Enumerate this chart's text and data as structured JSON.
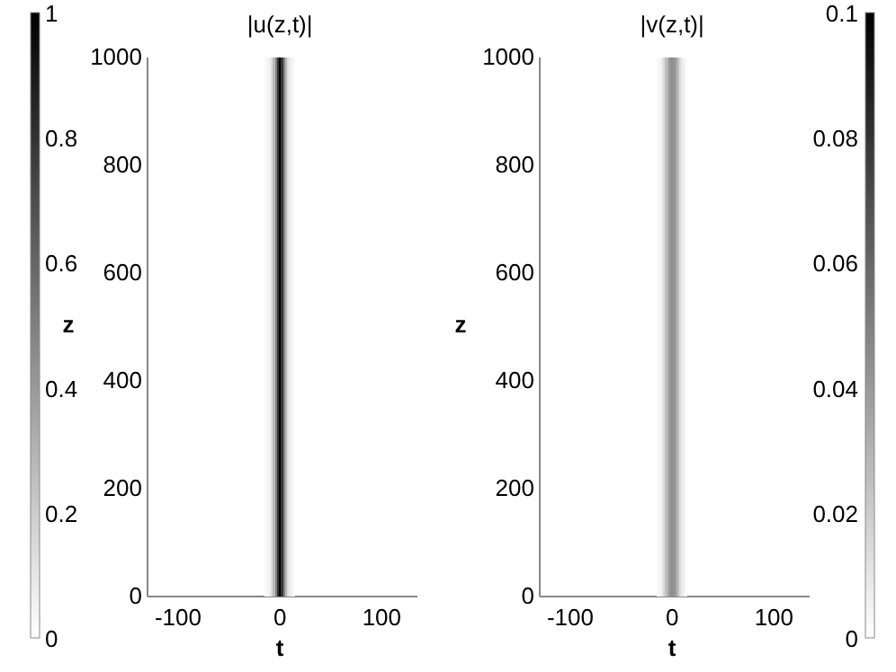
{
  "chart_data": [
    {
      "type": "heatmap",
      "title": "|u(z,t)|",
      "xlabel": "t",
      "ylabel": "z",
      "x": [
        -14,
        -12,
        -10,
        -8,
        -6,
        -4,
        -2,
        0,
        2,
        4,
        6,
        8,
        10,
        12,
        14
      ],
      "cells": [
        [
          0.02,
          0.04,
          0.07,
          0.14,
          0.27,
          0.49,
          0.79,
          1,
          0.79,
          0.49,
          0.27,
          0.14,
          0.07,
          0.04,
          0.02
        ]
      ],
      "clim": [
        0,
        1
      ],
      "cticks": [
        0,
        0.2,
        0.4,
        0.6,
        0.8,
        1
      ],
      "xlim": [
        -130,
        135
      ],
      "xticks": [
        -100,
        0,
        100
      ],
      "ylim": [
        0,
        1000
      ],
      "yticks": [
        0,
        200,
        400,
        600,
        800,
        1000
      ]
    },
    {
      "type": "heatmap",
      "title": "|v(z,t)|",
      "xlabel": "t",
      "ylabel": "z",
      "x": [
        -14,
        -12,
        -10,
        -8,
        -6,
        -4,
        -2,
        0,
        2,
        4,
        6,
        8,
        10,
        12,
        14
      ],
      "cells": [
        [
          0.002,
          0.004,
          0.008,
          0.015,
          0.025,
          0.035,
          0.042,
          0.045,
          0.042,
          0.035,
          0.025,
          0.015,
          0.008,
          0.004,
          0.002
        ]
      ],
      "clim": [
        0,
        0.1
      ],
      "cticks": [
        0,
        0.02,
        0.04,
        0.06,
        0.08,
        0.1
      ],
      "xlim": [
        -130,
        135
      ],
      "xticks": [
        -100,
        0,
        100
      ],
      "ylim": [
        0,
        1000
      ],
      "yticks": [
        0,
        200,
        400,
        600,
        800,
        1000
      ]
    }
  ]
}
